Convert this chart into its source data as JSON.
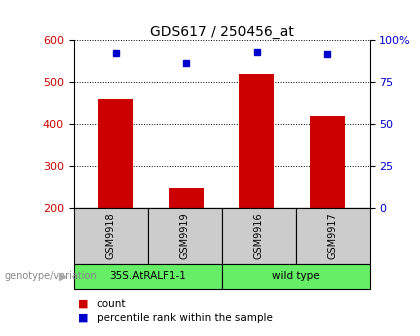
{
  "title": "GDS617 / 250456_at",
  "samples": [
    "GSM9918",
    "GSM9919",
    "GSM9916",
    "GSM9917"
  ],
  "counts": [
    460,
    248,
    520,
    420
  ],
  "percentile_values_display": [
    570,
    545,
    572,
    567
  ],
  "ylim_left": [
    200,
    600
  ],
  "ylim_right": [
    0,
    100
  ],
  "yticks_left": [
    200,
    300,
    400,
    500,
    600
  ],
  "yticks_right": [
    0,
    25,
    50,
    75,
    100
  ],
  "yticklabels_right": [
    "0",
    "25",
    "50",
    "75",
    "100%"
  ],
  "bar_color": "#cc0000",
  "dot_color": "#0000cc",
  "bar_width": 0.5,
  "group1_label": "35S.AtRALF1-1",
  "group2_label": "wild type",
  "group_color": "#66ee66",
  "sample_box_color": "#cccccc",
  "group_label_text": "genotype/variation",
  "legend_count_label": "count",
  "legend_pct_label": "percentile rank within the sample",
  "tick_label_color_left": "#cc0000",
  "tick_label_color_right": "#0000cc",
  "arrow_color": "#aaaaaa"
}
